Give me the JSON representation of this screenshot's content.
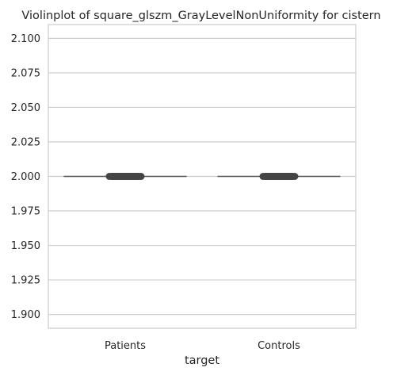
{
  "chart_data": {
    "type": "violin",
    "title": "Violinplot of square_glszm_GrayLevelNonUniformity for cistern",
    "xlabel": "target",
    "ylabel": "",
    "categories": [
      "Patients",
      "Controls"
    ],
    "values": [
      2.0,
      2.0
    ],
    "ylim": [
      1.89,
      2.11
    ],
    "yticks": [
      1.9,
      1.925,
      1.95,
      1.975,
      2.0,
      2.025,
      2.05,
      2.075,
      2.1
    ],
    "ytick_labels": [
      "1.900",
      "1.925",
      "1.950",
      "1.975",
      "2.000",
      "2.025",
      "2.050",
      "2.075",
      "2.100"
    ],
    "grid": true,
    "colors": {
      "background": "#ffffff",
      "grid": "#cccccc",
      "frame": "#cccccc",
      "marks": "#444444",
      "line": "#555555"
    }
  }
}
